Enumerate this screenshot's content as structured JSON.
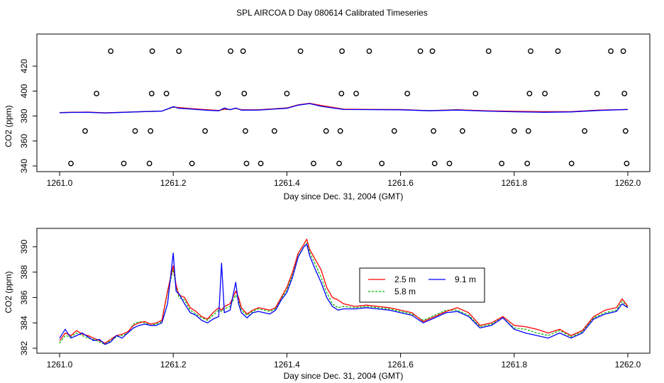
{
  "title": "SPL AIRCOA D  Day 080614  Calibrated Timeseries",
  "colors": {
    "series_2_5": "#ff0000",
    "series_5_8": "#00bb00",
    "series_9_1": "#0000ff",
    "points": "#000000"
  },
  "chart_data": [
    {
      "type": "line",
      "panel": "top",
      "xlabel": "Day since Dec. 31, 2004 (GMT)",
      "ylabel": "CO2 (ppm)",
      "xlim": [
        1261.0,
        1262.0
      ],
      "ylim": [
        340,
        440
      ],
      "xticks": [
        "1261.0",
        "1261.2",
        "1261.4",
        "1261.6",
        "1261.8",
        "1262.0"
      ],
      "yticks": [
        "340",
        "360",
        "380",
        "400",
        "420"
      ],
      "x": [
        1261.0,
        1261.02,
        1261.05,
        1261.08,
        1261.1,
        1261.15,
        1261.18,
        1261.2,
        1261.21,
        1261.23,
        1261.26,
        1261.28,
        1261.29,
        1261.3,
        1261.31,
        1261.32,
        1261.35,
        1261.4,
        1261.42,
        1261.44,
        1261.46,
        1261.5,
        1261.55,
        1261.6,
        1261.65,
        1261.7,
        1261.75,
        1261.8,
        1261.85,
        1261.9,
        1261.95,
        1262.0
      ],
      "series": [
        {
          "name": "2.5 m",
          "values": [
            382.8,
            383.0,
            383.2,
            382.6,
            382.9,
            383.6,
            384.0,
            387.3,
            386.8,
            386.0,
            385.0,
            384.5,
            385.5,
            385.2,
            386.2,
            385.0,
            385.0,
            386.5,
            389.0,
            390.2,
            388.5,
            385.5,
            385.3,
            385.2,
            384.3,
            385.0,
            384.2,
            383.8,
            383.5,
            383.5,
            384.8,
            385.2
          ]
        },
        {
          "name": "5.8 m",
          "values": [
            382.7,
            383.0,
            383.1,
            382.5,
            382.8,
            383.7,
            384.0,
            387.0,
            386.5,
            385.8,
            384.9,
            384.4,
            385.4,
            385.1,
            386.0,
            384.9,
            384.9,
            386.4,
            388.8,
            390.0,
            388.0,
            385.3,
            385.2,
            385.1,
            384.4,
            385.1,
            384.1,
            383.6,
            383.2,
            383.4,
            384.7,
            385.2
          ]
        },
        {
          "name": "9.1 m",
          "values": [
            382.6,
            382.9,
            383.0,
            382.4,
            382.8,
            383.5,
            383.9,
            387.5,
            386.2,
            385.6,
            384.6,
            384.2,
            386.5,
            385.0,
            386.4,
            384.7,
            384.8,
            386.2,
            388.7,
            390.0,
            387.8,
            385.2,
            385.1,
            385.0,
            384.2,
            384.8,
            384.0,
            383.4,
            383.0,
            383.3,
            384.5,
            385.2
          ]
        }
      ],
      "outliers": [
        {
          "x": 1261.02,
          "y": 342
        },
        {
          "x": 1261.045,
          "y": 368
        },
        {
          "x": 1261.065,
          "y": 398
        },
        {
          "x": 1261.09,
          "y": 432
        },
        {
          "x": 1261.113,
          "y": 342
        },
        {
          "x": 1261.133,
          "y": 368
        },
        {
          "x": 1261.158,
          "y": 342
        },
        {
          "x": 1261.16,
          "y": 368
        },
        {
          "x": 1261.162,
          "y": 398
        },
        {
          "x": 1261.163,
          "y": 432
        },
        {
          "x": 1261.188,
          "y": 398
        },
        {
          "x": 1261.21,
          "y": 432
        },
        {
          "x": 1261.233,
          "y": 342
        },
        {
          "x": 1261.256,
          "y": 368
        },
        {
          "x": 1261.279,
          "y": 398
        },
        {
          "x": 1261.301,
          "y": 432
        },
        {
          "x": 1261.323,
          "y": 432
        },
        {
          "x": 1261.325,
          "y": 398
        },
        {
          "x": 1261.327,
          "y": 368
        },
        {
          "x": 1261.329,
          "y": 342
        },
        {
          "x": 1261.354,
          "y": 342
        },
        {
          "x": 1261.378,
          "y": 368
        },
        {
          "x": 1261.4,
          "y": 398
        },
        {
          "x": 1261.424,
          "y": 432
        },
        {
          "x": 1261.447,
          "y": 342
        },
        {
          "x": 1261.469,
          "y": 368
        },
        {
          "x": 1261.492,
          "y": 342
        },
        {
          "x": 1261.494,
          "y": 368
        },
        {
          "x": 1261.496,
          "y": 398
        },
        {
          "x": 1261.497,
          "y": 432
        },
        {
          "x": 1261.522,
          "y": 398
        },
        {
          "x": 1261.545,
          "y": 432
        },
        {
          "x": 1261.567,
          "y": 342
        },
        {
          "x": 1261.589,
          "y": 368
        },
        {
          "x": 1261.612,
          "y": 398
        },
        {
          "x": 1261.635,
          "y": 432
        },
        {
          "x": 1261.656,
          "y": 432
        },
        {
          "x": 1261.658,
          "y": 368
        },
        {
          "x": 1261.66,
          "y": 342
        },
        {
          "x": 1261.686,
          "y": 342
        },
        {
          "x": 1261.709,
          "y": 368
        },
        {
          "x": 1261.732,
          "y": 398
        },
        {
          "x": 1261.755,
          "y": 432
        },
        {
          "x": 1261.778,
          "y": 342
        },
        {
          "x": 1261.8,
          "y": 368
        },
        {
          "x": 1261.823,
          "y": 342
        },
        {
          "x": 1261.825,
          "y": 368
        },
        {
          "x": 1261.827,
          "y": 398
        },
        {
          "x": 1261.829,
          "y": 432
        },
        {
          "x": 1261.854,
          "y": 398
        },
        {
          "x": 1261.877,
          "y": 432
        },
        {
          "x": 1261.901,
          "y": 342
        },
        {
          "x": 1261.924,
          "y": 368
        },
        {
          "x": 1261.946,
          "y": 398
        },
        {
          "x": 1261.97,
          "y": 432
        },
        {
          "x": 1261.992,
          "y": 432
        },
        {
          "x": 1261.994,
          "y": 398
        },
        {
          "x": 1261.996,
          "y": 368
        },
        {
          "x": 1261.998,
          "y": 342
        }
      ]
    },
    {
      "type": "line",
      "panel": "bottom",
      "xlabel": "Day since Dec. 31, 2004 (GMT)",
      "ylabel": "CO2 (ppm)",
      "xlim": [
        1261.0,
        1262.0
      ],
      "ylim": [
        382,
        391
      ],
      "xticks": [
        "1261.0",
        "1261.2",
        "1261.4",
        "1261.6",
        "1261.8",
        "1262.0"
      ],
      "yticks": [
        "382",
        "384",
        "386",
        "388",
        "390"
      ],
      "legend": [
        "2.5 m",
        "9.1 m",
        "5.8 m"
      ],
      "legend_position": "center-right",
      "x": [
        1261.0,
        1261.01,
        1261.02,
        1261.03,
        1261.04,
        1261.05,
        1261.06,
        1261.07,
        1261.08,
        1261.09,
        1261.1,
        1261.11,
        1261.12,
        1261.13,
        1261.14,
        1261.15,
        1261.16,
        1261.17,
        1261.18,
        1261.19,
        1261.2,
        1261.205,
        1261.21,
        1261.22,
        1261.23,
        1261.24,
        1261.25,
        1261.26,
        1261.27,
        1261.28,
        1261.285,
        1261.29,
        1261.3,
        1261.31,
        1261.315,
        1261.32,
        1261.33,
        1261.34,
        1261.35,
        1261.36,
        1261.37,
        1261.38,
        1261.39,
        1261.4,
        1261.41,
        1261.42,
        1261.43,
        1261.435,
        1261.44,
        1261.45,
        1261.46,
        1261.47,
        1261.48,
        1261.49,
        1261.5,
        1261.52,
        1261.54,
        1261.56,
        1261.58,
        1261.6,
        1261.62,
        1261.64,
        1261.66,
        1261.68,
        1261.7,
        1261.72,
        1261.74,
        1261.76,
        1261.78,
        1261.8,
        1261.82,
        1261.84,
        1261.86,
        1261.88,
        1261.9,
        1261.92,
        1261.94,
        1261.96,
        1261.98,
        1261.99,
        1262.0
      ],
      "series": [
        {
          "name": "2.5 m",
          "values": [
            382.6,
            383.2,
            383.0,
            383.4,
            383.1,
            383.0,
            382.8,
            382.6,
            382.4,
            382.7,
            383.0,
            383.1,
            383.3,
            383.8,
            384.0,
            384.1,
            383.9,
            384.0,
            384.2,
            386.5,
            388.5,
            387.0,
            386.2,
            386.0,
            385.2,
            384.9,
            384.5,
            384.3,
            384.8,
            385.2,
            385.0,
            385.3,
            385.5,
            386.5,
            386.0,
            385.2,
            384.7,
            385.0,
            385.2,
            385.1,
            385.0,
            385.2,
            386.0,
            386.8,
            388.0,
            389.5,
            390.2,
            390.6,
            389.8,
            389.0,
            388.2,
            386.8,
            386.0,
            385.8,
            385.5,
            385.3,
            385.4,
            385.3,
            385.2,
            385.0,
            384.8,
            384.1,
            384.5,
            384.9,
            385.2,
            384.8,
            383.8,
            384.0,
            384.5,
            383.8,
            383.7,
            383.5,
            383.2,
            383.5,
            383.0,
            383.4,
            384.5,
            385.0,
            385.2,
            385.9,
            385.3
          ]
        },
        {
          "name": "5.8 m",
          "values": [
            382.4,
            383.0,
            382.9,
            383.2,
            383.0,
            382.8,
            382.7,
            382.5,
            382.3,
            382.6,
            382.9,
            383.0,
            383.2,
            383.9,
            384.1,
            384.0,
            383.8,
            383.9,
            384.1,
            386.4,
            388.2,
            386.8,
            386.0,
            385.8,
            385.0,
            384.7,
            384.4,
            384.2,
            384.6,
            385.0,
            384.9,
            385.1,
            385.3,
            386.2,
            385.8,
            385.0,
            384.6,
            384.9,
            385.1,
            385.0,
            384.9,
            385.1,
            385.9,
            386.6,
            387.8,
            389.3,
            390.0,
            390.3,
            389.6,
            388.6,
            387.6,
            386.4,
            385.5,
            385.2,
            385.3,
            385.2,
            385.3,
            385.2,
            385.1,
            384.9,
            384.7,
            384.2,
            384.6,
            385.0,
            385.0,
            384.6,
            383.7,
            383.9,
            384.4,
            383.6,
            383.5,
            383.2,
            383.0,
            383.4,
            382.9,
            383.3,
            384.4,
            384.8,
            385.0,
            385.7,
            385.2
          ]
        },
        {
          "name": "9.1 m",
          "values": [
            382.8,
            383.5,
            382.8,
            383.0,
            383.2,
            382.9,
            382.6,
            382.7,
            382.3,
            382.5,
            383.0,
            382.8,
            383.2,
            383.6,
            383.8,
            383.9,
            383.8,
            383.8,
            384.0,
            385.5,
            389.5,
            386.5,
            386.3,
            385.5,
            384.8,
            384.6,
            384.2,
            384.0,
            384.3,
            384.5,
            388.7,
            384.8,
            385.0,
            387.2,
            385.5,
            384.8,
            384.4,
            384.8,
            384.9,
            384.8,
            384.7,
            385.0,
            385.8,
            386.4,
            387.6,
            389.2,
            390.0,
            390.2,
            389.3,
            388.2,
            387.2,
            386.0,
            385.3,
            385.0,
            385.1,
            385.1,
            385.2,
            385.1,
            385.0,
            384.8,
            384.6,
            384.0,
            384.4,
            384.8,
            384.9,
            384.5,
            383.6,
            383.8,
            384.4,
            383.5,
            383.2,
            383.0,
            382.8,
            383.2,
            382.8,
            383.2,
            384.3,
            384.7,
            384.9,
            385.5,
            385.2
          ]
        }
      ]
    }
  ]
}
